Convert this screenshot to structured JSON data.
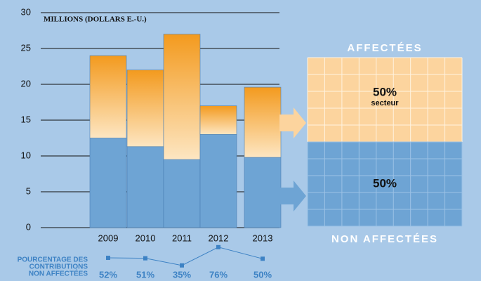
{
  "chart_data": [
    {
      "type": "stacked_bar",
      "axis_title": "MILLIONS (DOLLARS E.-U.)",
      "categories": [
        "2009",
        "2010",
        "2011",
        "2012",
        "2013"
      ],
      "series": [
        {
          "name": "NON AFFECTÉES",
          "color": "#6ea4d4",
          "values": [
            12.5,
            11.3,
            9.5,
            13,
            9.8
          ]
        },
        {
          "name": "AFFECTÉES",
          "color": "#f39a1e",
          "values": [
            11.5,
            10.7,
            17.5,
            4,
            9.8
          ]
        }
      ],
      "ylim": [
        0,
        30
      ],
      "yticks": [
        0,
        5,
        10,
        15,
        20,
        25,
        30
      ],
      "grid": true
    },
    {
      "type": "line",
      "title": [
        "POURCENTAGE DES",
        "CONTRIBUTIONS",
        "NON AFFECTÉES"
      ],
      "color": "#3d82c4",
      "values": [
        52,
        51,
        35,
        76,
        50
      ],
      "value_labels": [
        "52%",
        "51%",
        "35%",
        "76%",
        "50%"
      ]
    },
    {
      "type": "allocation",
      "series": [
        {
          "name": "AFFECTÉES",
          "color": "#fcd49e",
          "value": 50,
          "value_label": "50%",
          "note": "secteur"
        },
        {
          "name": "NON AFFECTÉES",
          "color": "#6ea4d4",
          "value": 50,
          "value_label": "50%"
        }
      ]
    }
  ]
}
